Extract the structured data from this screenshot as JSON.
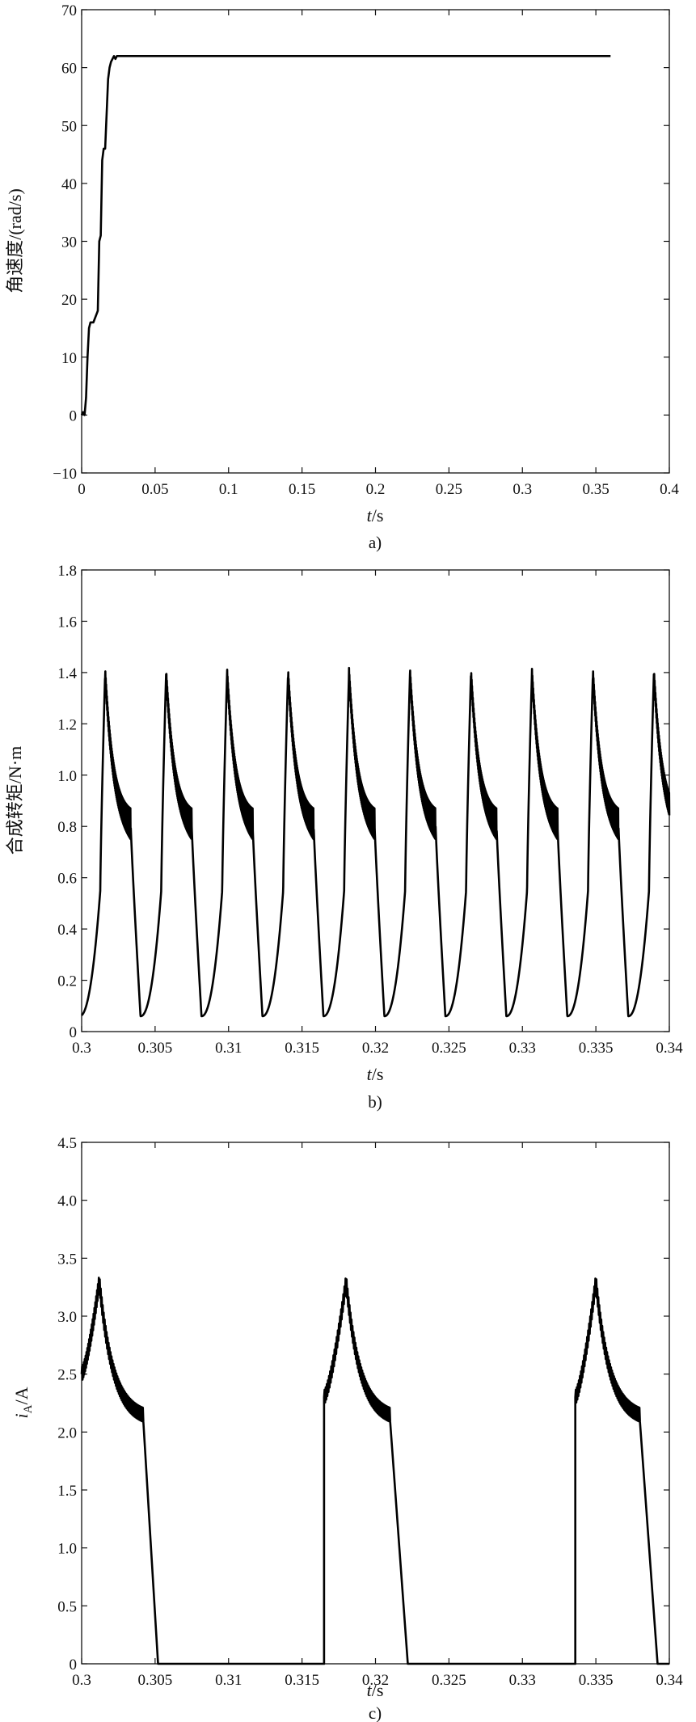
{
  "chart_data": [
    {
      "type": "line",
      "caption": "a)",
      "ylabel": "角速度/(rad/s)",
      "xlabel_italic": "t",
      "xlabel_unit": "/s",
      "xlim": [
        0,
        0.4
      ],
      "ylim": [
        -10,
        70
      ],
      "xticks": [
        0,
        0.05,
        0.1,
        0.15,
        0.2,
        0.25,
        0.3,
        0.35,
        0.4
      ],
      "xtick_labels": [
        "0",
        "0.05",
        "0.1",
        "0.15",
        "0.2",
        "0.25",
        "0.3",
        "0.35",
        "0.4"
      ],
      "yticks": [
        -10,
        0,
        10,
        20,
        30,
        40,
        50,
        60,
        70
      ],
      "ytick_labels": [
        "−10",
        "0",
        "10",
        "20",
        "30",
        "40",
        "50",
        "60",
        "70"
      ],
      "grid": false,
      "series": [
        {
          "x": [
            0,
            0.001,
            0.002,
            0.003,
            0.004,
            0.005,
            0.006,
            0.008,
            0.011,
            0.012,
            0.013,
            0.014,
            0.015,
            0.016,
            0.017,
            0.018,
            0.019,
            0.02,
            0.021,
            0.022,
            0.023,
            0.024,
            0.026,
            0.028,
            0.03,
            0.05,
            0.1,
            0.15,
            0.2,
            0.25,
            0.3,
            0.35,
            0.36
          ],
          "y": [
            0,
            0.5,
            0,
            3,
            10,
            15,
            16,
            16,
            18,
            30,
            31,
            44,
            46,
            46,
            52,
            58,
            60,
            61,
            61.5,
            62,
            61.5,
            62,
            62,
            62,
            62,
            62,
            62,
            62,
            62,
            62,
            62,
            62,
            62
          ]
        }
      ]
    },
    {
      "type": "line",
      "caption": "b)",
      "ylabel": "合成转矩/N·m",
      "xlabel_italic": "t",
      "xlabel_unit": "/s",
      "xlim": [
        0.3,
        0.34
      ],
      "ylim": [
        0,
        1.8
      ],
      "xticks": [
        0.3,
        0.305,
        0.31,
        0.315,
        0.32,
        0.325,
        0.33,
        0.335,
        0.34
      ],
      "xtick_labels": [
        "0.3",
        "0.305",
        "0.31",
        "0.315",
        "0.32",
        "0.325",
        "0.33",
        "0.335",
        "0.34"
      ],
      "yticks": [
        0,
        0.2,
        0.4,
        0.6,
        0.8,
        1.0,
        1.2,
        1.4,
        1.6,
        1.8
      ],
      "ytick_labels": [
        "0",
        "0.2",
        "0.4",
        "0.6",
        "0.8",
        "1.0",
        "1.2",
        "1.4",
        "1.6",
        "1.8"
      ],
      "grid": false,
      "pulse": {
        "period": 0.00415,
        "first_peak_time": 0.3016,
        "count": 10,
        "peak": 1.4,
        "tail_value": 0.8,
        "min_value": 0.06,
        "ripple": 0.06
      }
    },
    {
      "type": "line",
      "caption": "c)",
      "ylabel_italic": "i",
      "ylabel_sub": "A",
      "ylabel_unit": "/A",
      "xlabel_italic": "t",
      "xlabel_unit": "/s",
      "xlim": [
        0.3,
        0.34
      ],
      "ylim": [
        0,
        4.5
      ],
      "xticks": [
        0.3,
        0.305,
        0.31,
        0.315,
        0.32,
        0.325,
        0.33,
        0.335,
        0.34
      ],
      "xtick_labels": [
        "0.3",
        "0.305",
        "0.31",
        "0.315",
        "0.32",
        "0.325",
        "0.33",
        "0.335",
        "0.34"
      ],
      "yticks": [
        0,
        0.5,
        1.0,
        1.5,
        2.0,
        2.5,
        3.0,
        3.5,
        4.0,
        4.5
      ],
      "ytick_labels": [
        "0",
        "0.5",
        "1.0",
        "1.5",
        "2.0",
        "2.5",
        "3.0",
        "3.5",
        "4.0",
        "4.5"
      ],
      "grid": false,
      "pulses": [
        {
          "on": 0.3,
          "start_value": 2.5,
          "peak_time": 0.3012,
          "peak": 3.3,
          "tail_time": 0.3042,
          "tail_value": 2.1,
          "off": 0.3052
        },
        {
          "on": 0.3165,
          "start_value": 2.3,
          "peak_time": 0.318,
          "peak": 3.3,
          "tail_time": 0.321,
          "tail_value": 2.1,
          "off": 0.3222
        },
        {
          "on": 0.3336,
          "start_value": 2.3,
          "peak_time": 0.335,
          "peak": 3.3,
          "tail_time": 0.338,
          "tail_value": 2.1,
          "off": 0.3392
        }
      ],
      "ripple": 0.06
    }
  ]
}
